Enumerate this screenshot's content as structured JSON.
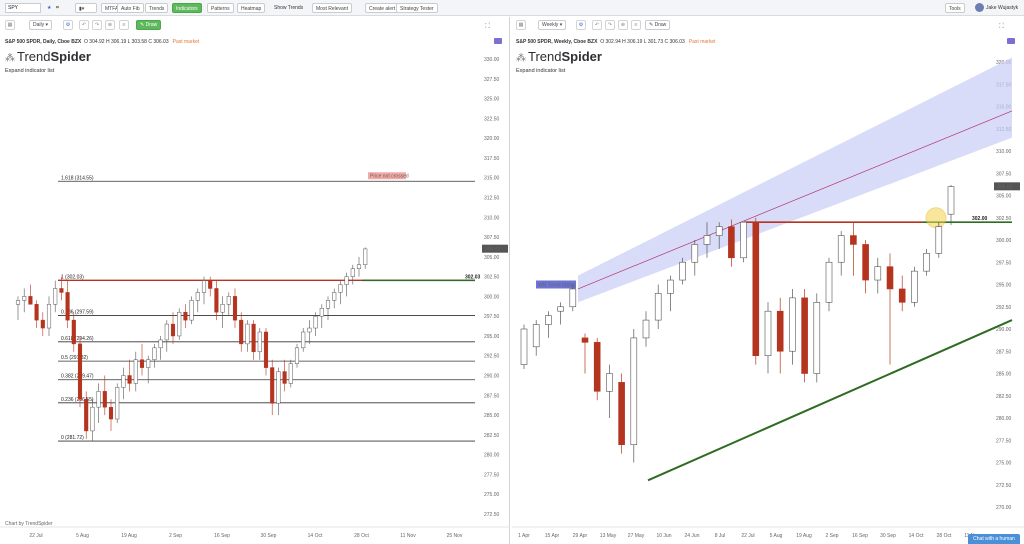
{
  "topbar": {
    "symbol": "SPY",
    "timeframe": "Daily",
    "buttons": [
      "MTFA",
      "Auto Fib",
      "Trends",
      "Indicators",
      "Patterns",
      "Heatmap"
    ],
    "show_trends": "Show Trends",
    "most_relevant": "Most Relevant",
    "create_alert": "Create alert",
    "strategy_tester": "Strategy Tester",
    "tools": "Tools",
    "user": "Jake Wujastyk"
  },
  "left": {
    "timeframe": "Daily",
    "draw_button": "Draw",
    "title": "S&P 500 SPDR, Daily, Cboe BZX",
    "ohlc": "O 304.92   H 306.19   L 303.58   C 306.03",
    "status": "Past market",
    "logo_light": "Trend",
    "logo_bold": "Spider",
    "expand": "Expand indicator list",
    "price_tag": "306.03",
    "level_tag": "302.03",
    "alert_tag": "Price not crossed",
    "fib_levels": [
      {
        "label": "1.618 (314.55)",
        "value": 314.55
      },
      {
        "label": "1 (302.03)",
        "value": 302.03
      },
      {
        "label": "0.786 (297.59)",
        "value": 297.59
      },
      {
        "label": "0.618 (294.26)",
        "value": 294.26
      },
      {
        "label": "0.5 (291.82)",
        "value": 291.82
      },
      {
        "label": "0.382 (289.47)",
        "value": 289.47
      },
      {
        "label": "0.236 (286.55)",
        "value": 286.55
      },
      {
        "label": "0 (281.72)",
        "value": 281.72
      }
    ],
    "y_ticks": [
      "330.00",
      "327.50",
      "325.00",
      "322.50",
      "320.00",
      "317.50",
      "315.00",
      "312.50",
      "310.00",
      "307.50",
      "305.00",
      "302.50",
      "300.00",
      "297.50",
      "295.00",
      "292.50",
      "290.00",
      "287.50",
      "285.00",
      "282.50",
      "280.00",
      "277.50",
      "275.00",
      "272.50"
    ],
    "x_ticks": [
      "22 Jul",
      "5 Aug",
      "19 Aug",
      "2 Sep",
      "16 Sep",
      "30 Sep",
      "14 Oct",
      "28 Oct",
      "11 Nov",
      "25 Nov"
    ],
    "footer": "Chart by TrendSpider"
  },
  "right": {
    "timeframe": "Weekly",
    "draw_button": "Draw",
    "title": "S&P 500 SPDR, Weekly, Cboe BZX",
    "ohlc": "O 302.94   H 306.19   L 301.73   C 306.03",
    "status": "Past market",
    "logo_light": "Trend",
    "logo_bold": "Spider",
    "expand": "Expand indicator list",
    "price_tag": "306.03",
    "level_tag": "302.00",
    "channel_tag": "WR Trend (4)(m)",
    "y_ticks": [
      "320.00",
      "317.50",
      "315.00",
      "312.50",
      "310.00",
      "307.50",
      "305.00",
      "302.50",
      "300.00",
      "297.50",
      "295.00",
      "292.50",
      "290.00",
      "287.50",
      "285.00",
      "282.50",
      "280.00",
      "277.50",
      "275.00",
      "272.50",
      "270.00"
    ],
    "x_ticks": [
      "1 Apr",
      "15 Apr",
      "29 Apr",
      "13 May",
      "27 May",
      "10 Jun",
      "24 Jun",
      "8 Jul",
      "22 Jul",
      "5 Aug",
      "19 Aug",
      "2 Sep",
      "16 Sep",
      "30 Sep",
      "14 Oct",
      "28 Oct",
      "11 Nov"
    ]
  },
  "chat": "Chat with a human",
  "colors": {
    "up": "#ffffff",
    "down": "#b5341f",
    "resistance": "#b5341f",
    "support": "#2f6b23",
    "channel": "#c8cdf5",
    "highlight": "#f2d34b"
  }
}
